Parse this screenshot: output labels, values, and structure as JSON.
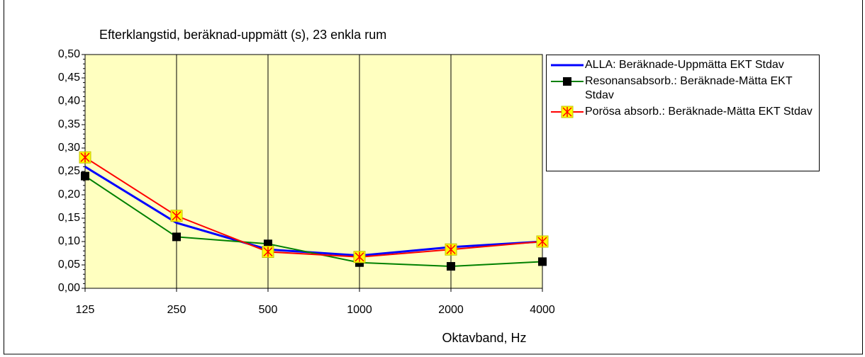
{
  "chart_data": {
    "type": "line",
    "title": "Efterklangstid, beräknad-uppmätt (s), 23 enkla rum",
    "x_label": "Oktavband, Hz",
    "categories": [
      "125",
      "250",
      "500",
      "1000",
      "2000",
      "4000"
    ],
    "series": [
      {
        "name": "ALLA: Beräknade-Uppmätta EKT Stdav",
        "color": "#0000ff",
        "marker": "none",
        "values": [
          0.26,
          0.14,
          0.083,
          0.07,
          0.088,
          0.1
        ]
      },
      {
        "name": "Resonansabsorb.: Beräknade-Mätta EKT Stdav",
        "color": "#008000",
        "marker": "square",
        "values": [
          0.24,
          0.11,
          0.095,
          0.055,
          0.047,
          0.057
        ]
      },
      {
        "name": "Porösa absorb.: Beräknade-Mätta EKT Stdav",
        "color": "#ff0000",
        "marker": "star-square",
        "values": [
          0.28,
          0.155,
          0.078,
          0.067,
          0.083,
          0.1
        ]
      }
    ],
    "ylim": [
      0,
      0.5
    ],
    "yticks": [
      {
        "value": 0,
        "label": "0,00"
      },
      {
        "value": 0.05,
        "label": "0,05"
      },
      {
        "value": 0.1,
        "label": "0,10"
      },
      {
        "value": 0.15,
        "label": "0,15"
      },
      {
        "value": 0.2,
        "label": "0,20"
      },
      {
        "value": 0.25,
        "label": "0,25"
      },
      {
        "value": 0.3,
        "label": "0,30"
      },
      {
        "value": 0.35,
        "label": "0,35"
      },
      {
        "value": 0.4,
        "label": "0,40"
      },
      {
        "value": 0.45,
        "label": "0,45"
      },
      {
        "value": 0.5,
        "label": "0,50"
      }
    ],
    "plot_background": "#ffffc0",
    "grid": "x",
    "legend": "right"
  }
}
